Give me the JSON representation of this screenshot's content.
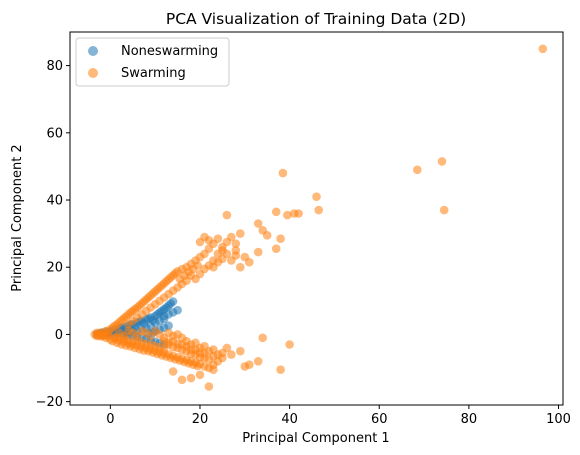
{
  "chart_data": {
    "type": "scatter",
    "title": "PCA Visualization of Training Data (2D)",
    "xlabel": "Principal Component 1",
    "ylabel": "Principal Component 2",
    "xlim": [
      -9,
      101
    ],
    "ylim": [
      -21,
      90
    ],
    "xticks": [
      0,
      20,
      40,
      60,
      80,
      100
    ],
    "yticks": [
      -20,
      0,
      20,
      40,
      60,
      80
    ],
    "grid": false,
    "legend_position": "top-left",
    "series": [
      {
        "name": "Noneswarming",
        "color": "#1f77b4",
        "alpha": 0.55,
        "points": [
          [
            -3,
            0
          ],
          [
            -2.5,
            0.3
          ],
          [
            -2,
            0.5
          ],
          [
            -1.5,
            0.2
          ],
          [
            -1,
            0.8
          ],
          [
            -0.5,
            0.4
          ],
          [
            0,
            0.9
          ],
          [
            0.5,
            1.2
          ],
          [
            1,
            1.5
          ],
          [
            1.5,
            0.7
          ],
          [
            2,
            1.8
          ],
          [
            2.5,
            2.0
          ],
          [
            3,
            2.2
          ],
          [
            3.5,
            1.6
          ],
          [
            4,
            2.6
          ],
          [
            4.5,
            2.9
          ],
          [
            5,
            3.1
          ],
          [
            5.5,
            2.4
          ],
          [
            6,
            3.5
          ],
          [
            6.5,
            3.8
          ],
          [
            7,
            4.0
          ],
          [
            7.5,
            3.3
          ],
          [
            8,
            4.4
          ],
          [
            8.5,
            4.7
          ],
          [
            9,
            5.0
          ],
          [
            9.5,
            4.2
          ],
          [
            10,
            5.5
          ],
          [
            10.5,
            6.0
          ],
          [
            11,
            6.5
          ],
          [
            11.5,
            7.0
          ],
          [
            12,
            7.5
          ],
          [
            12.5,
            8.0
          ],
          [
            13,
            8.6
          ],
          [
            13.5,
            9.2
          ],
          [
            14,
            9.8
          ],
          [
            10,
            3.5
          ],
          [
            11,
            4.0
          ],
          [
            12,
            4.6
          ],
          [
            9,
            2.5
          ],
          [
            8,
            2.0
          ],
          [
            7,
            1.5
          ],
          [
            6,
            1.2
          ],
          [
            5,
            0.9
          ],
          [
            4,
            0.7
          ],
          [
            3,
            0.5
          ],
          [
            2,
            0.3
          ],
          [
            1,
            0.2
          ],
          [
            0,
            0.1
          ],
          [
            -1,
            0.0
          ],
          [
            -2,
            -0.1
          ],
          [
            5,
            -0.4
          ],
          [
            6,
            -0.7
          ],
          [
            7,
            -1.0
          ],
          [
            8,
            -1.4
          ],
          [
            9,
            -1.8
          ],
          [
            10,
            -2.2
          ],
          [
            11,
            -2.6
          ],
          [
            12,
            -3.0
          ],
          [
            4,
            -0.2
          ],
          [
            3,
            -0.1
          ],
          [
            10,
            1.0
          ],
          [
            11,
            1.5
          ],
          [
            12,
            2.0
          ],
          [
            13,
            2.6
          ],
          [
            12,
            5.5
          ],
          [
            13,
            6.0
          ],
          [
            14,
            6.6
          ],
          [
            15,
            7.2
          ],
          [
            9.5,
            0.5
          ],
          [
            8.5,
            0.3
          ]
        ]
      },
      {
        "name": "Swarming",
        "color": "#ff7f0e",
        "alpha": 0.55,
        "points": [
          [
            96.5,
            85
          ],
          [
            74,
            51.5
          ],
          [
            74.5,
            37
          ],
          [
            68.5,
            49
          ],
          [
            38.5,
            48
          ],
          [
            46,
            41
          ],
          [
            46.5,
            37
          ],
          [
            42,
            36
          ],
          [
            41,
            36
          ],
          [
            39.5,
            35.5
          ],
          [
            37,
            36.5
          ],
          [
            33,
            33
          ],
          [
            34,
            31
          ],
          [
            35,
            29.5
          ],
          [
            38,
            28.5
          ],
          [
            37,
            25.5
          ],
          [
            33,
            24.5
          ],
          [
            30,
            23
          ],
          [
            31,
            21.5
          ],
          [
            28,
            25
          ],
          [
            26,
            35.5
          ],
          [
            34,
            -1
          ],
          [
            40,
            -3
          ],
          [
            38,
            -10.5
          ],
          [
            30,
            -9.5
          ],
          [
            31,
            -9
          ],
          [
            33,
            -8
          ],
          [
            22,
            -15.5
          ],
          [
            20,
            -12
          ],
          [
            18,
            -13
          ],
          [
            16,
            -13.5
          ],
          [
            14,
            -11
          ],
          [
            23,
            -9
          ],
          [
            25,
            -7
          ],
          [
            27,
            -6
          ],
          [
            29,
            -5
          ],
          [
            -3.5,
            0
          ],
          [
            -3,
            0.5
          ],
          [
            -3,
            -0.5
          ],
          [
            -2.5,
            0.2
          ],
          [
            -2.5,
            -0.3
          ],
          [
            -2,
            0.6
          ],
          [
            -2,
            -0.6
          ],
          [
            -1.5,
            0.3
          ],
          [
            -1.5,
            -0.4
          ],
          [
            -1,
            1.0
          ],
          [
            -1,
            -1.0
          ],
          [
            -0.5,
            0.5
          ],
          [
            -0.5,
            -0.5
          ],
          [
            0,
            1.5
          ],
          [
            0,
            -1.5
          ],
          [
            0.5,
            2.0
          ],
          [
            0.5,
            -2.0
          ],
          [
            1,
            2.6
          ],
          [
            1,
            -1.2
          ],
          [
            1.5,
            3.0
          ],
          [
            1.5,
            -2.5
          ],
          [
            2,
            3.6
          ],
          [
            2,
            -1.8
          ],
          [
            2.5,
            4.2
          ],
          [
            2.5,
            -3.0
          ],
          [
            3,
            4.8
          ],
          [
            3,
            -2.2
          ],
          [
            3.5,
            5.3
          ],
          [
            3.5,
            -3.3
          ],
          [
            4,
            5.9
          ],
          [
            4,
            -2.6
          ],
          [
            4.5,
            6.5
          ],
          [
            4.5,
            -3.6
          ],
          [
            5,
            7.0
          ],
          [
            5,
            -3.0
          ],
          [
            5.5,
            7.5
          ],
          [
            5.5,
            -4.0
          ],
          [
            6,
            8.0
          ],
          [
            6,
            -3.2
          ],
          [
            6.5,
            8.6
          ],
          [
            6.5,
            -4.4
          ],
          [
            7,
            9.2
          ],
          [
            7,
            -3.6
          ],
          [
            7.5,
            9.8
          ],
          [
            7.5,
            -4.8
          ],
          [
            8,
            10.4
          ],
          [
            8,
            -4.0
          ],
          [
            8.5,
            11.0
          ],
          [
            8.5,
            -5.0
          ],
          [
            9,
            11.6
          ],
          [
            9,
            -4.4
          ],
          [
            9.5,
            12.2
          ],
          [
            9.5,
            -5.4
          ],
          [
            10,
            12.8
          ],
          [
            10,
            -4.8
          ],
          [
            10.5,
            13.4
          ],
          [
            10.5,
            -5.8
          ],
          [
            11,
            14.0
          ],
          [
            11,
            -5.2
          ],
          [
            11.5,
            14.6
          ],
          [
            11.5,
            -6.2
          ],
          [
            12,
            15.2
          ],
          [
            12,
            -5.6
          ],
          [
            12.5,
            15.8
          ],
          [
            12.5,
            -6.6
          ],
          [
            13,
            16.4
          ],
          [
            13,
            -6.0
          ],
          [
            13.5,
            17.0
          ],
          [
            13.5,
            -7.0
          ],
          [
            14,
            17.6
          ],
          [
            14,
            -6.4
          ],
          [
            14.5,
            18.2
          ],
          [
            14.5,
            -7.4
          ],
          [
            15,
            18.8
          ],
          [
            15,
            -6.8
          ],
          [
            15.5,
            16.5
          ],
          [
            15.5,
            -7.8
          ],
          [
            16,
            19.4
          ],
          [
            16,
            -7.2
          ],
          [
            16.5,
            17.5
          ],
          [
            16.5,
            -8.2
          ],
          [
            17,
            20.0
          ],
          [
            17,
            -7.6
          ],
          [
            17.5,
            18.6
          ],
          [
            17.5,
            -8.6
          ],
          [
            18,
            21.0
          ],
          [
            18,
            -8.0
          ],
          [
            18.5,
            19.5
          ],
          [
            18.5,
            -9.0
          ],
          [
            19,
            22.0
          ],
          [
            19,
            -8.4
          ],
          [
            19.5,
            20.5
          ],
          [
            19.5,
            -9.4
          ],
          [
            20,
            23.0
          ],
          [
            20,
            -8.8
          ],
          [
            21,
            24.0
          ],
          [
            21,
            -9.5
          ],
          [
            22,
            25.5
          ],
          [
            22,
            -10.0
          ],
          [
            23,
            27.0
          ],
          [
            23,
            -10.5
          ],
          [
            24,
            28.5
          ],
          [
            24,
            -8.0
          ],
          [
            25,
            26.0
          ],
          [
            26,
            27.5
          ],
          [
            27,
            29.0
          ],
          [
            28,
            27.0
          ],
          [
            29,
            30.0
          ],
          [
            20,
            27.5
          ],
          [
            21,
            29.0
          ],
          [
            22,
            28.0
          ],
          [
            23,
            20.0
          ],
          [
            24,
            21.5
          ],
          [
            25,
            22.5
          ],
          [
            26,
            24.0
          ],
          [
            27,
            22.0
          ],
          [
            28,
            23.5
          ],
          [
            29,
            20.0
          ],
          [
            2,
            0.5
          ],
          [
            3,
            -0.5
          ],
          [
            4,
            1.0
          ],
          [
            5,
            0.5
          ],
          [
            6,
            -0.5
          ],
          [
            7,
            1.0
          ],
          [
            8,
            0.5
          ],
          [
            9,
            -0.5
          ],
          [
            10,
            1.0
          ],
          [
            11,
            0.0
          ],
          [
            12,
            -1.0
          ],
          [
            13,
            0.5
          ],
          [
            14,
            -0.5
          ],
          [
            15,
            0.0
          ],
          [
            16,
            -1.0
          ],
          [
            17,
            -2.0
          ],
          [
            18,
            -3.0
          ],
          [
            19,
            -2.5
          ],
          [
            20,
            -4.0
          ],
          [
            21,
            -3.5
          ],
          [
            22,
            -5.0
          ],
          [
            23,
            -4.5
          ],
          [
            24,
            -6.0
          ],
          [
            25,
            -5.5
          ],
          [
            26,
            -4.0
          ],
          [
            12,
            -2.0
          ],
          [
            13,
            -3.0
          ],
          [
            14,
            -2.0
          ],
          [
            15,
            -4.0
          ],
          [
            16,
            -3.0
          ],
          [
            17,
            -5.0
          ],
          [
            18,
            -4.5
          ],
          [
            19,
            -6.0
          ],
          [
            20,
            -5.5
          ],
          [
            21,
            -7.0
          ],
          [
            4,
            3.0
          ],
          [
            5,
            4.0
          ],
          [
            6,
            5.0
          ],
          [
            7,
            6.0
          ],
          [
            8,
            7.0
          ],
          [
            9,
            8.0
          ],
          [
            10,
            9.0
          ],
          [
            11,
            10.0
          ],
          [
            12,
            11.0
          ],
          [
            13,
            12.0
          ],
          [
            14,
            13.0
          ],
          [
            15,
            14.0
          ],
          [
            1,
            -0.8
          ],
          [
            2,
            -1.0
          ],
          [
            3,
            -1.4
          ],
          [
            4,
            -1.8
          ],
          [
            5,
            -2.2
          ],
          [
            6,
            -2.0
          ],
          [
            7,
            -2.4
          ],
          [
            8,
            -2.8
          ],
          [
            9,
            -3.0
          ],
          [
            10,
            -3.4
          ],
          [
            11,
            -3.8
          ],
          [
            12,
            -4.2
          ],
          [
            13,
            -2.4
          ],
          [
            14,
            -3.8
          ],
          [
            15,
            -2.8
          ],
          [
            16,
            -4.6
          ],
          [
            17,
            -3.6
          ],
          [
            18,
            -5.8
          ],
          [
            19,
            -4.6
          ],
          [
            20,
            -6.8
          ],
          [
            21,
            -5.6
          ],
          [
            22,
            -7.5
          ],
          [
            23,
            -6.5
          ],
          [
            16,
            15.0
          ],
          [
            17,
            16.0
          ],
          [
            18,
            17.5
          ],
          [
            19,
            16.5
          ],
          [
            20,
            18.0
          ],
          [
            21,
            19.5
          ],
          [
            22,
            20.5
          ],
          [
            23,
            22.0
          ],
          [
            24,
            24.0
          ],
          [
            25,
            25.0
          ]
        ]
      }
    ]
  }
}
